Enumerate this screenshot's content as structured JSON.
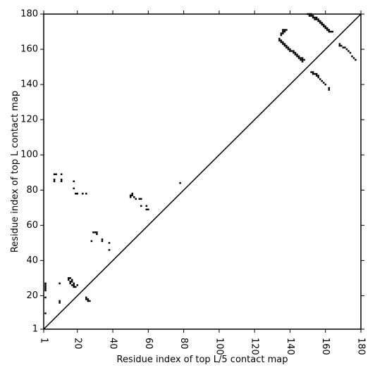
{
  "chart_data": {
    "type": "scatter",
    "xlabel": "Residue index of top L/5 contact map",
    "ylabel": "Residue index of top L contact map",
    "xlim": [
      1,
      180
    ],
    "ylim": [
      1,
      180
    ],
    "xticks": [
      1,
      20,
      40,
      60,
      80,
      100,
      120,
      140,
      160,
      180
    ],
    "yticks": [
      1,
      20,
      40,
      60,
      80,
      100,
      120,
      140,
      160,
      180
    ],
    "color": "#000000",
    "diagonal": true,
    "grid": false,
    "points": [
      [
        2,
        27
      ],
      [
        2,
        26
      ],
      [
        2,
        25
      ],
      [
        2,
        24
      ],
      [
        2,
        23
      ],
      [
        2,
        19
      ],
      [
        2,
        10
      ],
      [
        10,
        27
      ],
      [
        10,
        17
      ],
      [
        10,
        16
      ],
      [
        7,
        89
      ],
      [
        8,
        89
      ],
      [
        7,
        86
      ],
      [
        7,
        85
      ],
      [
        11,
        89
      ],
      [
        11,
        86
      ],
      [
        11,
        85
      ],
      [
        18,
        85
      ],
      [
        18,
        81
      ],
      [
        19,
        78
      ],
      [
        20,
        78
      ],
      [
        23,
        78
      ],
      [
        25,
        78
      ],
      [
        15,
        30
      ],
      [
        16,
        30
      ],
      [
        15,
        29
      ],
      [
        17,
        29
      ],
      [
        16,
        28
      ],
      [
        17,
        28
      ],
      [
        16,
        27
      ],
      [
        18,
        27
      ],
      [
        17,
        26
      ],
      [
        18,
        26
      ],
      [
        18,
        25
      ],
      [
        19,
        25
      ],
      [
        20,
        26
      ],
      [
        25,
        19
      ],
      [
        25,
        18
      ],
      [
        26,
        18
      ],
      [
        26,
        17
      ],
      [
        27,
        17
      ],
      [
        29,
        56
      ],
      [
        30,
        56
      ],
      [
        31,
        56
      ],
      [
        31,
        55
      ],
      [
        28,
        51
      ],
      [
        34,
        52
      ],
      [
        34,
        51
      ],
      [
        38,
        50
      ],
      [
        38,
        46
      ],
      [
        51,
        78
      ],
      [
        50,
        77
      ],
      [
        51,
        77
      ],
      [
        50,
        76
      ],
      [
        52,
        76
      ],
      [
        53,
        75
      ],
      [
        55,
        75
      ],
      [
        56,
        75
      ],
      [
        56,
        71
      ],
      [
        59,
        71
      ],
      [
        59,
        69
      ],
      [
        60,
        69
      ],
      [
        78,
        84
      ],
      [
        150,
        180
      ],
      [
        151,
        180
      ],
      [
        152,
        180
      ],
      [
        151,
        179
      ],
      [
        152,
        179
      ],
      [
        153,
        179
      ],
      [
        153,
        178
      ],
      [
        154,
        178
      ],
      [
        155,
        178
      ],
      [
        154,
        177
      ],
      [
        155,
        177
      ],
      [
        156,
        177
      ],
      [
        156,
        176
      ],
      [
        157,
        176
      ],
      [
        157,
        175
      ],
      [
        158,
        175
      ],
      [
        158,
        174
      ],
      [
        159,
        174
      ],
      [
        159,
        173
      ],
      [
        160,
        173
      ],
      [
        160,
        172
      ],
      [
        161,
        172
      ],
      [
        161,
        171
      ],
      [
        162,
        171
      ],
      [
        162,
        170
      ],
      [
        163,
        170
      ],
      [
        164,
        170
      ],
      [
        136,
        171
      ],
      [
        137,
        171
      ],
      [
        138,
        171
      ],
      [
        136,
        170
      ],
      [
        137,
        170
      ],
      [
        135,
        169
      ],
      [
        136,
        169
      ],
      [
        135,
        168
      ],
      [
        134,
        166
      ],
      [
        134,
        165
      ],
      [
        135,
        165
      ],
      [
        135,
        164
      ],
      [
        136,
        164
      ],
      [
        136,
        163
      ],
      [
        137,
        163
      ],
      [
        137,
        162
      ],
      [
        138,
        162
      ],
      [
        138,
        161
      ],
      [
        139,
        161
      ],
      [
        139,
        160
      ],
      [
        140,
        160
      ],
      [
        140,
        159
      ],
      [
        141,
        159
      ],
      [
        142,
        159
      ],
      [
        142,
        158
      ],
      [
        143,
        158
      ],
      [
        143,
        157
      ],
      [
        144,
        157
      ],
      [
        144,
        156
      ],
      [
        145,
        156
      ],
      [
        145,
        155
      ],
      [
        146,
        155
      ],
      [
        147,
        155
      ],
      [
        146,
        154
      ],
      [
        147,
        154
      ],
      [
        148,
        154
      ],
      [
        147,
        153
      ],
      [
        152,
        147
      ],
      [
        153,
        147
      ],
      [
        153,
        146
      ],
      [
        154,
        146
      ],
      [
        155,
        146
      ],
      [
        155,
        145
      ],
      [
        156,
        145
      ],
      [
        156,
        144
      ],
      [
        157,
        143
      ],
      [
        158,
        142
      ],
      [
        159,
        141
      ],
      [
        160,
        140
      ],
      [
        162,
        138
      ],
      [
        162,
        137
      ],
      [
        168,
        163
      ],
      [
        168,
        162
      ],
      [
        169,
        162
      ],
      [
        170,
        161
      ],
      [
        171,
        161
      ],
      [
        172,
        160
      ],
      [
        173,
        159
      ],
      [
        174,
        158
      ],
      [
        175,
        156
      ],
      [
        176,
        155
      ],
      [
        177,
        154
      ]
    ]
  }
}
